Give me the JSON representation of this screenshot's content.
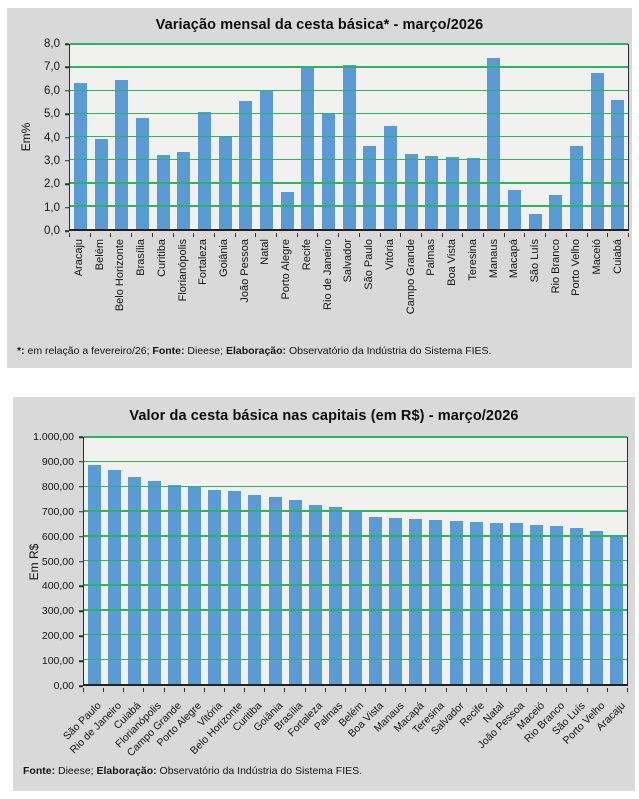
{
  "colors": {
    "panel_bg": "#d9d9d9",
    "plot_bg": "#f1f1f0",
    "bar": "#5b9bd5",
    "gridline": "#2db45f",
    "axis": "#2e2e2e",
    "text": "#141414"
  },
  "chart_data": [
    {
      "type": "bar",
      "title": "Variação mensal da cesta básica* - março/2026",
      "xlabel": "",
      "ylabel": "Em%",
      "ylim": [
        0,
        8
      ],
      "ytick_labels": [
        "8,0",
        "7,0",
        "6,0",
        "5,0",
        "4,0",
        "3,0",
        "2,0",
        "1,0",
        "0,0"
      ],
      "grid": true,
      "legend": "none",
      "xlabel_rotation": "vertical",
      "categories": [
        "Aracaju",
        "Belém",
        "Belo Horizonte",
        "Brasília",
        "Curitiba",
        "Florianópolis",
        "Fortaleza",
        "Goiânia",
        "João Pessoa",
        "Natal",
        "Porto Alegre",
        "Recife",
        "Rio de Janeiro",
        "Salvador",
        "São Paulo",
        "Vitória",
        "Campo Grande",
        "Palmas",
        "Boa Vista",
        "Teresina",
        "Manaus",
        "Macapá",
        "São Luís",
        "Rio Branco",
        "Porto Velho",
        "Maceió",
        "Cuiabá"
      ],
      "values": [
        6.3,
        3.9,
        6.45,
        4.8,
        3.2,
        3.35,
        5.05,
        4.0,
        5.55,
        6.0,
        1.6,
        7.0,
        5.0,
        7.1,
        3.6,
        4.45,
        3.25,
        3.15,
        3.1,
        3.05,
        7.4,
        1.7,
        0.65,
        1.45,
        3.6,
        6.75,
        5.6
      ],
      "footnote_parts": [
        {
          "text": "*:",
          "bold": true
        },
        {
          "text": " em relação a fevereiro/26; ",
          "bold": false
        },
        {
          "text": "Fonte:",
          "bold": true
        },
        {
          "text": " Dieese; ",
          "bold": false
        },
        {
          "text": "Elaboração:",
          "bold": true
        },
        {
          "text": " Observatório da Indústria do Sistema FIES.",
          "bold": false
        }
      ]
    },
    {
      "type": "bar",
      "title": "Valor da cesta básica nas capitais (em R$) - março/2026",
      "xlabel": "",
      "ylabel": "Em R$",
      "ylim": [
        0,
        1000
      ],
      "ytick_labels": [
        "1.000,00",
        "900,00",
        "800,00",
        "700,00",
        "600,00",
        "500,00",
        "400,00",
        "300,00",
        "200,00",
        "100,00",
        "0,00"
      ],
      "grid": true,
      "legend": "none",
      "xlabel_rotation": "diagonal-45",
      "categories": [
        "São Paulo",
        "Rio de Janeiro",
        "Cuiabá",
        "Florianópolis",
        "Campo Grande",
        "Porto Alegre",
        "Vitória",
        "Belo Horizonte",
        "Curitiba",
        "Goiânia",
        "Brasília",
        "Fortaleza",
        "Palmas",
        "Belém",
        "Boa Vista",
        "Manaus",
        "Macapá",
        "Teresina",
        "Salvador",
        "Recife",
        "Natal",
        "João Pessoa",
        "Maceió",
        "Rio Branco",
        "São Luís",
        "Porto Velho",
        "Aracaju"
      ],
      "values": [
        885,
        866,
        838,
        821,
        806,
        799,
        786,
        781,
        766,
        756,
        743,
        726,
        715,
        700,
        676,
        672,
        668,
        665,
        661,
        654,
        653,
        650,
        644,
        640,
        633,
        621,
        600
      ],
      "footnote_parts": [
        {
          "text": "Fonte:",
          "bold": true
        },
        {
          "text": " Dieese; ",
          "bold": false
        },
        {
          "text": "Elaboração:",
          "bold": true
        },
        {
          "text": " Observatório da Indústria do Sistema FIES.",
          "bold": false
        }
      ]
    }
  ]
}
